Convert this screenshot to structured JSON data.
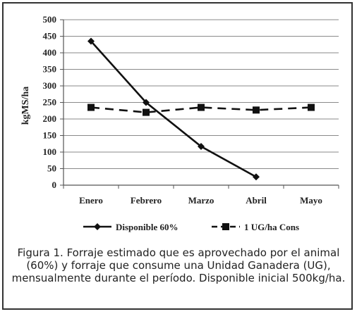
{
  "chart_data": {
    "type": "line",
    "categories": [
      "Enero",
      "Febrero",
      "Marzo",
      "Abril",
      "Mayo"
    ],
    "ylabel": "kgMS/ha",
    "ylim": [
      0,
      500
    ],
    "yticks": [
      0,
      50,
      100,
      150,
      200,
      250,
      300,
      350,
      400,
      450,
      500
    ],
    "grid": "horizontal",
    "legend": "bottom",
    "series": [
      {
        "name": "Disponible 60%",
        "values": [
          435,
          250,
          117,
          25,
          null
        ],
        "color": "#111111",
        "marker": "diamond",
        "style": "solid"
      },
      {
        "name": "1 UG/ha Cons",
        "values": [
          235,
          220,
          235,
          227,
          235
        ],
        "color": "#111111",
        "marker": "square",
        "style": "dashed"
      }
    ]
  },
  "caption": "Figura 1. Forraje estimado que es aprovechado por el animal (60%) y forraje que consume una Unidad Ganadera (UG), mensualmente durante el período. Disponible inicial 500kg/ha."
}
